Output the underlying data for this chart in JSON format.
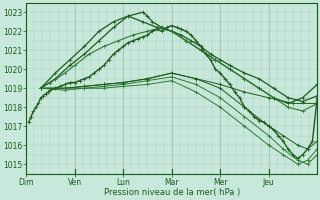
{
  "xlabel": "Pression niveau de la mer( hPa )",
  "xlim": [
    0,
    6.0
  ],
  "ylim": [
    1014.5,
    1023.5
  ],
  "yticks": [
    1015,
    1016,
    1017,
    1018,
    1019,
    1020,
    1021,
    1022,
    1023
  ],
  "xtick_labels": [
    "Dim",
    "Ven",
    "Lun",
    "Mar",
    "Mer",
    "Jeu"
  ],
  "xtick_pos": [
    0.0,
    1.0,
    2.0,
    3.0,
    4.0,
    5.0
  ],
  "xgrid_major": [
    1.0,
    2.0,
    3.0,
    4.0,
    5.0
  ],
  "background_color": "#c8e8dc",
  "grid_color": "#a8ccbc",
  "dark_green": "#1a5c1a",
  "med_green": "#2d7a2d",
  "figsize": [
    3.2,
    2.0
  ],
  "dpi": 100,
  "lines": [
    {
      "x": [
        0.3,
        0.6,
        0.9,
        1.2,
        1.5,
        1.8,
        2.1,
        2.4,
        2.7,
        3.0,
        3.3,
        3.6,
        3.9,
        4.2,
        4.5,
        4.8,
        5.1,
        5.4,
        5.7,
        6.0
      ],
      "y": [
        1019.0,
        1019.5,
        1020.2,
        1020.8,
        1021.5,
        1022.2,
        1022.8,
        1022.5,
        1022.2,
        1022.0,
        1021.5,
        1021.0,
        1020.5,
        1020.0,
        1019.5,
        1019.0,
        1018.5,
        1018.2,
        1018.5,
        1019.2
      ],
      "color": "#1a5c1a",
      "lw": 0.9,
      "marker": "+"
    },
    {
      "x": [
        0.3,
        0.6,
        0.9,
        1.2,
        1.5,
        1.8,
        2.1,
        2.4,
        2.5,
        2.6,
        2.8,
        3.0,
        3.2,
        3.4,
        3.6,
        3.8,
        4.0,
        4.2,
        4.5,
        4.8,
        5.1,
        5.4,
        5.7,
        6.0
      ],
      "y": [
        1019.0,
        1019.8,
        1020.5,
        1021.2,
        1022.0,
        1022.5,
        1022.8,
        1023.0,
        1022.8,
        1022.5,
        1022.2,
        1022.0,
        1021.8,
        1021.5,
        1021.2,
        1020.8,
        1020.5,
        1020.2,
        1019.8,
        1019.5,
        1019.0,
        1018.5,
        1018.3,
        1018.6
      ],
      "color": "#1a5c1a",
      "lw": 0.9,
      "marker": "+"
    },
    {
      "x": [
        0.3,
        0.5,
        0.8,
        1.0,
        1.3,
        1.6,
        1.9,
        2.2,
        2.5,
        2.8,
        3.0,
        3.3,
        3.6,
        3.9,
        4.2,
        4.5,
        4.8,
        5.1,
        5.4,
        5.7,
        6.0
      ],
      "y": [
        1019.0,
        1019.3,
        1019.8,
        1020.2,
        1020.8,
        1021.2,
        1021.5,
        1021.8,
        1022.0,
        1022.2,
        1022.0,
        1021.5,
        1021.0,
        1020.5,
        1020.0,
        1019.5,
        1019.0,
        1018.5,
        1018.0,
        1017.8,
        1018.2
      ],
      "color": "#2d7a2d",
      "lw": 0.8,
      "marker": "+"
    },
    {
      "x": [
        0.3,
        0.8,
        1.2,
        1.6,
        2.0,
        2.5,
        3.0,
        3.5,
        4.0,
        4.5,
        5.0,
        5.5,
        6.0
      ],
      "y": [
        1019.0,
        1019.0,
        1019.1,
        1019.2,
        1019.3,
        1019.5,
        1019.8,
        1019.5,
        1019.2,
        1018.8,
        1018.5,
        1018.2,
        1018.2
      ],
      "color": "#1a5c1a",
      "lw": 0.7,
      "marker": "+"
    },
    {
      "x": [
        0.3,
        0.8,
        1.2,
        1.6,
        2.0,
        2.5,
        3.0,
        3.5,
        4.0,
        4.5,
        5.0,
        5.3,
        5.6,
        5.8,
        6.0
      ],
      "y": [
        1019.0,
        1019.0,
        1019.1,
        1019.2,
        1019.3,
        1019.5,
        1019.8,
        1019.5,
        1019.0,
        1018.0,
        1017.0,
        1016.5,
        1016.0,
        1015.8,
        1016.2
      ],
      "color": "#1a5c1a",
      "lw": 0.7,
      "marker": "+"
    },
    {
      "x": [
        0.3,
        0.8,
        1.2,
        1.6,
        2.0,
        2.5,
        3.0,
        3.5,
        4.0,
        4.5,
        5.0,
        5.3,
        5.6,
        5.8,
        6.0
      ],
      "y": [
        1019.0,
        1019.0,
        1019.0,
        1019.1,
        1019.2,
        1019.4,
        1019.6,
        1019.2,
        1018.5,
        1017.5,
        1016.5,
        1015.8,
        1015.2,
        1015.0,
        1015.5
      ],
      "color": "#2d7a2d",
      "lw": 0.7,
      "marker": "+"
    },
    {
      "x": [
        0.3,
        0.8,
        1.2,
        1.6,
        2.0,
        2.5,
        3.0,
        3.5,
        4.0,
        4.5,
        5.0,
        5.3,
        5.6,
        5.8,
        6.0
      ],
      "y": [
        1019.0,
        1018.9,
        1019.0,
        1019.0,
        1019.1,
        1019.2,
        1019.4,
        1018.8,
        1018.0,
        1017.0,
        1016.0,
        1015.5,
        1015.0,
        1015.2,
        1015.8
      ],
      "color": "#2d7a2d",
      "lw": 0.7,
      "marker": "+"
    },
    {
      "x": [
        0.05,
        0.1,
        0.15,
        0.2,
        0.25,
        0.3,
        0.35,
        0.4,
        0.45,
        0.5,
        0.6,
        0.7,
        0.8,
        0.9,
        1.0,
        1.1,
        1.2,
        1.3,
        1.4,
        1.5,
        1.6,
        1.7,
        1.8,
        1.9,
        2.0,
        2.1,
        2.2,
        2.3,
        2.4,
        2.5,
        2.6,
        2.7,
        2.8,
        2.9,
        3.0,
        3.1,
        3.2,
        3.3,
        3.4,
        3.5,
        3.6,
        3.7,
        3.8,
        3.9,
        4.0,
        4.1,
        4.2,
        4.3,
        4.4,
        4.5,
        4.6,
        4.7,
        4.8,
        4.9,
        5.0,
        5.1,
        5.2,
        5.3,
        5.4,
        5.5,
        5.6,
        5.7,
        5.8,
        5.9,
        6.0
      ],
      "y": [
        1017.2,
        1017.5,
        1017.8,
        1018.0,
        1018.2,
        1018.5,
        1018.6,
        1018.7,
        1018.8,
        1018.9,
        1019.0,
        1019.1,
        1019.2,
        1019.3,
        1019.3,
        1019.4,
        1019.5,
        1019.6,
        1019.8,
        1020.0,
        1020.2,
        1020.5,
        1020.8,
        1021.0,
        1021.2,
        1021.4,
        1021.5,
        1021.6,
        1021.7,
        1021.8,
        1022.0,
        1022.1,
        1022.0,
        1022.2,
        1022.3,
        1022.2,
        1022.1,
        1022.0,
        1021.8,
        1021.5,
        1021.2,
        1020.8,
        1020.5,
        1020.0,
        1019.8,
        1019.5,
        1019.2,
        1018.8,
        1018.5,
        1018.0,
        1017.8,
        1017.5,
        1017.3,
        1017.2,
        1017.0,
        1016.8,
        1016.5,
        1016.2,
        1015.8,
        1015.5,
        1015.3,
        1015.5,
        1015.8,
        1016.2,
        1018.5
      ],
      "color": "#1a5c1a",
      "lw": 1.0,
      "marker": "+"
    }
  ]
}
